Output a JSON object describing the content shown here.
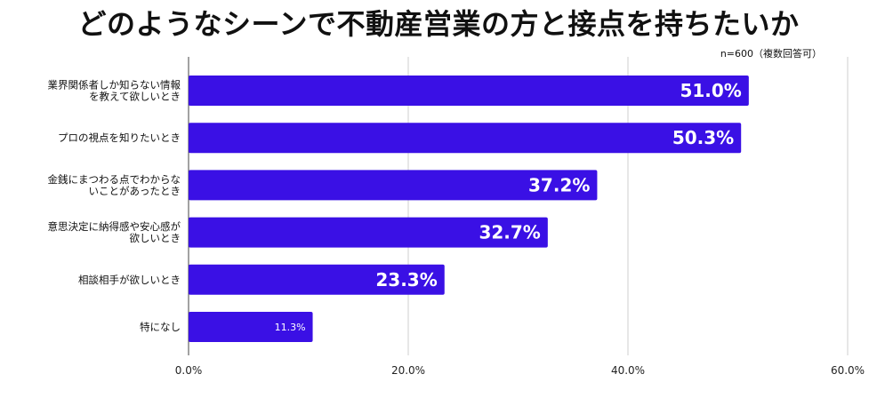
{
  "chart_data": {
    "type": "bar",
    "orientation": "horizontal",
    "title": "どのようなシーンで不動産営業の方と接点を持ちたいか",
    "note": "n=600（複数回答可）",
    "categories": [
      [
        "業界関係者しか知らない情報",
        "を教えて欲しいとき"
      ],
      [
        "プロの視点を知りたいとき"
      ],
      [
        "金銭にまつわる点でわからな",
        "いことがあったとき"
      ],
      [
        "意思決定に納得感や安心感が",
        "欲しいとき"
      ],
      [
        "相談相手が欲しいとき"
      ],
      [
        "特になし"
      ]
    ],
    "values": [
      51.0,
      50.3,
      37.2,
      32.7,
      23.3,
      11.3
    ],
    "value_labels": [
      "51.0%",
      "50.3%",
      "37.2%",
      "32.7%",
      "23.3%",
      "11.3%"
    ],
    "xlim": [
      0,
      60
    ],
    "xticks": [
      "0.0%",
      "20.0%",
      "40.0%",
      "60.0%"
    ],
    "grid": true,
    "bar_color": "#3a10e5",
    "label_color": "#ffffff"
  }
}
